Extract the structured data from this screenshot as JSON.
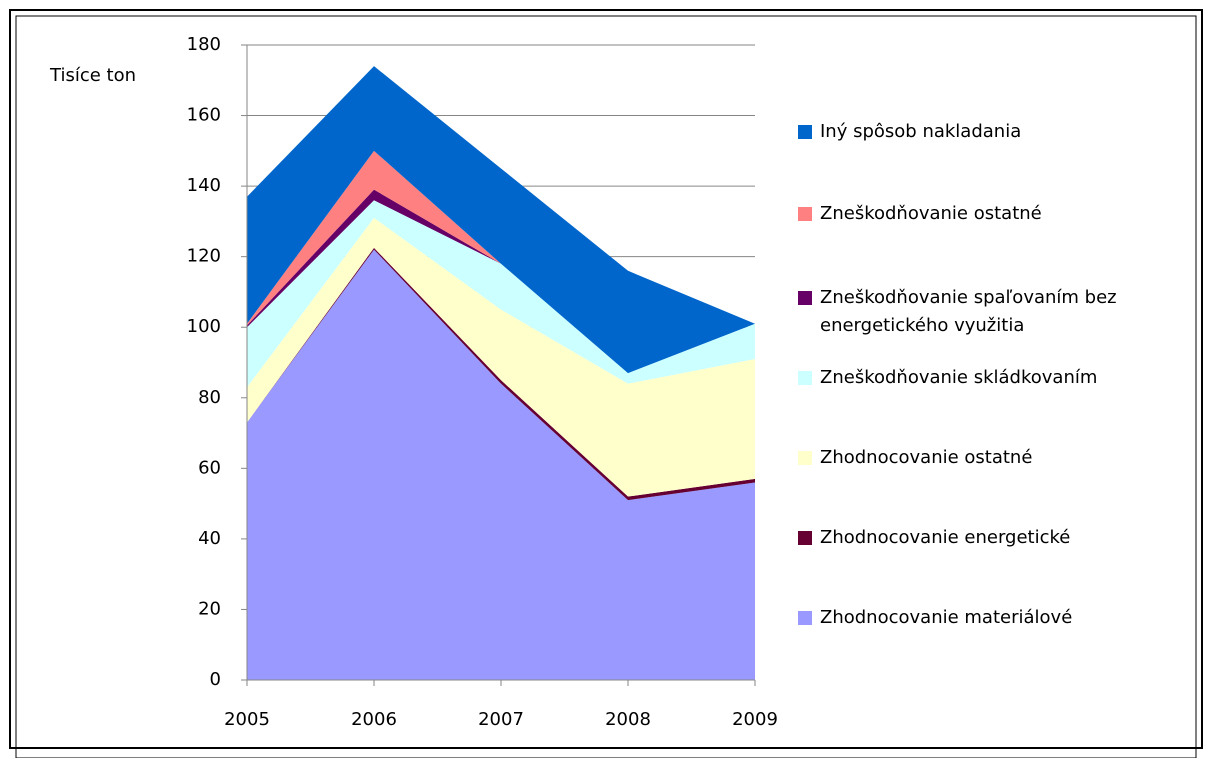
{
  "chart_data": {
    "type": "stacked_area",
    "y_label": "Tisíce ton",
    "categories": [
      "2005",
      "2006",
      "2007",
      "2008",
      "2009"
    ],
    "ylim": [
      0,
      180
    ],
    "yticks": [
      0,
      20,
      40,
      60,
      80,
      100,
      120,
      140,
      160,
      180
    ],
    "grid": true,
    "series": [
      {
        "name": "Zhodnocovanie materiálové",
        "color": "#9999ff",
        "values": [
          73,
          122,
          84,
          51,
          56
        ]
      },
      {
        "name": "Zhodnocovanie energetické",
        "color": "#660033",
        "values": [
          0,
          0.5,
          1,
          1,
          1
        ]
      },
      {
        "name": "Zhodnocovanie ostatné",
        "color": "#ffffcc",
        "values": [
          10,
          8.5,
          20,
          32,
          34
        ]
      },
      {
        "name": "Zneškodňovanie skládkovaním",
        "color": "#ccffff",
        "values": [
          17,
          5,
          13,
          3,
          10
        ]
      },
      {
        "name": "Zneškodňovanie spaľovaním bez energetického využitia",
        "color": "#660066",
        "values": [
          0.5,
          3,
          0,
          0,
          0
        ]
      },
      {
        "name": "Zneškodňovanie ostatné",
        "color": "#ff8080",
        "values": [
          0.5,
          11,
          0,
          0,
          0
        ]
      },
      {
        "name": "Iný spôsob nakladania",
        "color": "#0066cc",
        "values": [
          36,
          24,
          27,
          29,
          0
        ]
      }
    ]
  }
}
